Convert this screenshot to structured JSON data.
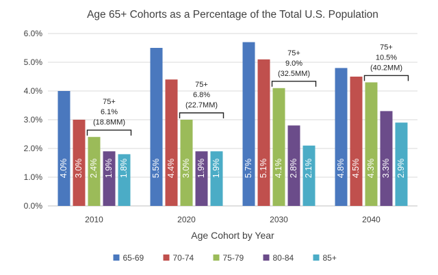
{
  "chart_data": {
    "type": "bar",
    "title": "Age 65+ Cohorts as a Percentage of the Total U.S. Population",
    "xlabel": "Age Cohort by Year",
    "ylabel": "",
    "categories": [
      "2010",
      "2020",
      "2030",
      "2040"
    ],
    "ylim": [
      0,
      6
    ],
    "yticks": [
      "0.0%",
      "1.0%",
      "2.0%",
      "3.0%",
      "4.0%",
      "5.0%",
      "6.0%"
    ],
    "grid": "horizontal",
    "legend": "bottom",
    "series": [
      {
        "name": "65-69",
        "color": "#4a78be",
        "values": [
          4.0,
          5.5,
          5.7,
          4.8
        ],
        "labels": [
          "4.0%",
          "5.5%",
          "5.7%",
          "4.8%"
        ]
      },
      {
        "name": "70-74",
        "color": "#c0504d",
        "values": [
          3.0,
          4.4,
          5.1,
          4.5
        ],
        "labels": [
          "3.0%",
          "4.4%",
          "5.1%",
          "4.5%"
        ]
      },
      {
        "name": "75-79",
        "color": "#9bbb59",
        "values": [
          2.4,
          3.0,
          4.1,
          4.3
        ],
        "labels": [
          "2.4%",
          "3.0%",
          "4.1%",
          "4.3%"
        ]
      },
      {
        "name": "80-84",
        "color": "#6b4c8a",
        "values": [
          1.9,
          1.9,
          2.8,
          3.3
        ],
        "labels": [
          "1.9%",
          "1.9%",
          "2.8%",
          "3.3%"
        ]
      },
      {
        "name": "85+",
        "color": "#4bacc6",
        "values": [
          1.8,
          1.9,
          2.1,
          2.9
        ],
        "labels": [
          "1.8%",
          "1.9%",
          "2.1%",
          "2.9%"
        ]
      }
    ],
    "annotations": [
      {
        "category": "2010",
        "lines": [
          "75+",
          "6.1%",
          "(18.8MM)"
        ]
      },
      {
        "category": "2020",
        "lines": [
          "75+",
          "6.8%",
          "(22.7MM)"
        ]
      },
      {
        "category": "2030",
        "lines": [
          "75+",
          "9.0%",
          "(32.5MM)"
        ]
      },
      {
        "category": "2040",
        "lines": [
          "75+",
          "10.5%",
          "(40.2MM)"
        ]
      }
    ]
  }
}
